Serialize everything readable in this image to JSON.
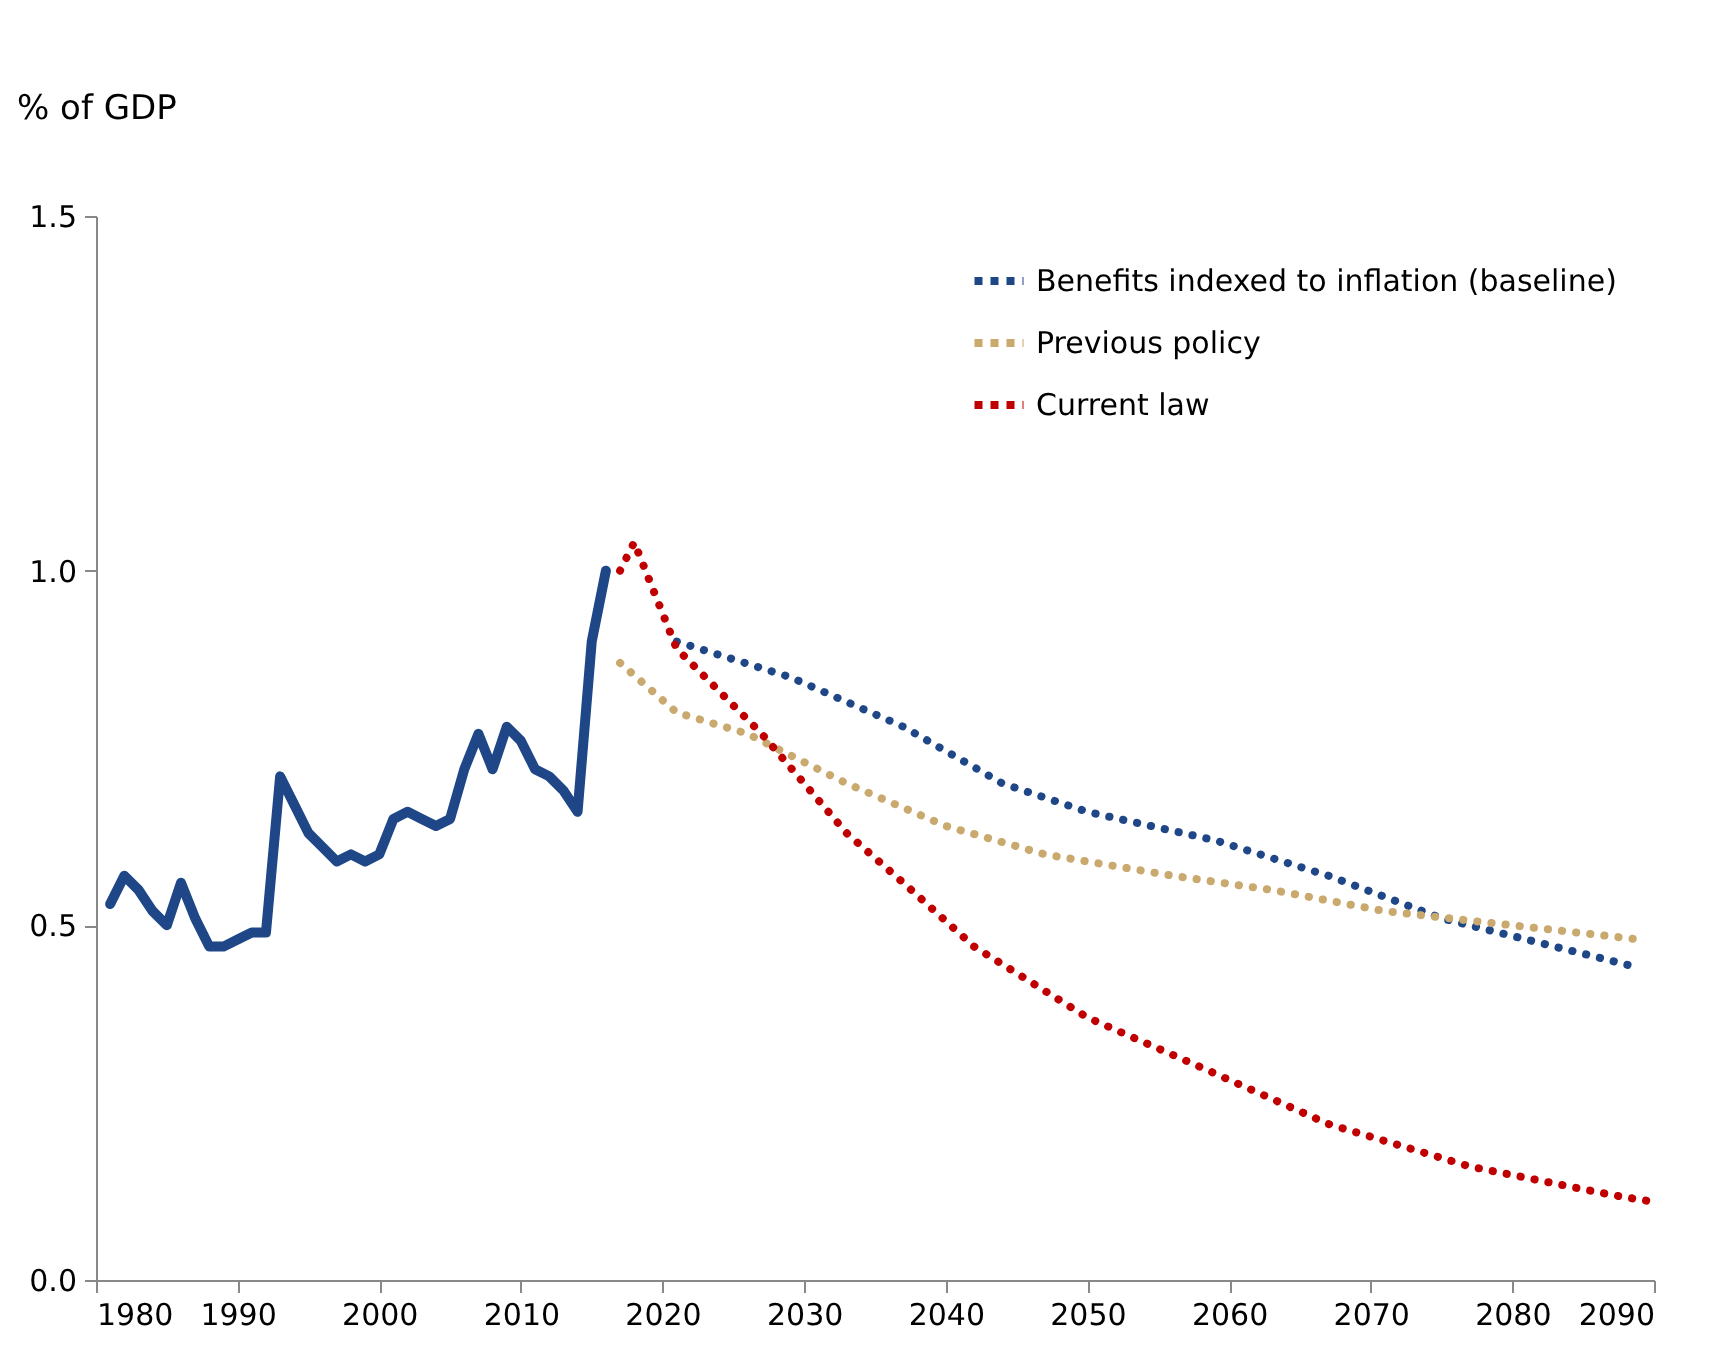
{
  "chart_data": {
    "type": "line",
    "ylabel": "% of GDP",
    "xlim": [
      1980,
      2090
    ],
    "ylim": [
      0,
      1.5
    ],
    "xticks": [
      1980,
      1990,
      2000,
      2010,
      2020,
      2030,
      2040,
      2050,
      2060,
      2070,
      2080,
      2090
    ],
    "yticks": [
      {
        "value": 0,
        "label": "0.0"
      },
      {
        "value": 0.5,
        "label": "0.5"
      },
      {
        "value": 1,
        "label": "1.0"
      },
      {
        "value": 1.5,
        "label": "1.5"
      }
    ],
    "grid": false,
    "legend": "top right",
    "marker": "none",
    "series": [
      {
        "color": "#1f4788",
        "line_style": "solid",
        "x": [
          1981,
          1982,
          1983,
          1984,
          1985,
          1986,
          1987,
          1988,
          1989,
          1990,
          1991,
          1992,
          1993,
          1994,
          1995,
          1996,
          1997,
          1998,
          1999,
          2000,
          2001,
          2002,
          2003,
          2004,
          2005,
          2006,
          2007,
          2008,
          2009,
          2010,
          2011,
          2012,
          2013,
          2014,
          2015,
          2016
        ],
        "values": [
          0.53,
          0.57,
          0.55,
          0.52,
          0.5,
          0.56,
          0.51,
          0.47,
          0.47,
          0.48,
          0.49,
          0.49,
          0.71,
          0.67,
          0.63,
          0.61,
          0.59,
          0.6,
          0.59,
          0.6,
          0.65,
          0.66,
          0.65,
          0.64,
          0.65,
          0.72,
          0.77,
          0.72,
          0.78,
          0.76,
          0.72,
          0.71,
          0.69,
          0.66,
          0.9,
          1.0
        ]
      },
      {
        "name": "Benefits indexed to inflation (baseline)",
        "color": "#1f4788",
        "line_style": "dotted",
        "x": [
          2021,
          2029,
          2037,
          2044,
          2050,
          2059,
          2067,
          2075,
          2083,
          2089
        ],
        "values": [
          0.9,
          0.85,
          0.78,
          0.7,
          0.66,
          0.62,
          0.57,
          0.51,
          0.47,
          0.44
        ]
      },
      {
        "name": "Previous policy",
        "color": "#c9a96e",
        "line_style": "dotted",
        "x": [
          2017,
          2021,
          2026,
          2033,
          2040,
          2047,
          2056,
          2063,
          2071,
          2080,
          2089
        ],
        "values": [
          0.87,
          0.8,
          0.77,
          0.7,
          0.64,
          0.6,
          0.57,
          0.55,
          0.52,
          0.5,
          0.48
        ]
      },
      {
        "name": "Current law",
        "color": "#c00000",
        "line_style": "dotted",
        "x": [
          2017,
          2018,
          2021,
          2027,
          2033,
          2037,
          2042,
          2050,
          2058,
          2067,
          2077,
          2087,
          2090
        ],
        "values": [
          1.0,
          1.04,
          0.89,
          0.77,
          0.63,
          0.56,
          0.47,
          0.37,
          0.3,
          0.22,
          0.16,
          0.12,
          0.11
        ]
      }
    ]
  }
}
